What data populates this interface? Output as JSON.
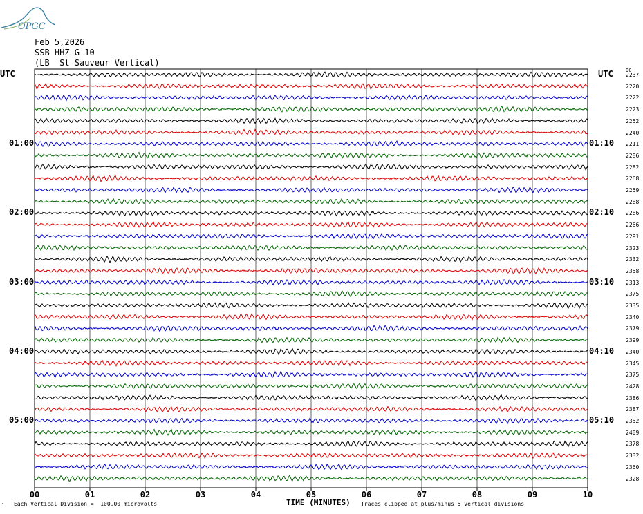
{
  "header": {
    "logo_text": "OPGC",
    "date": "Feb 5,2026",
    "station": "SSB HHZ G 10",
    "location": "(LB  St Sauveur Vertical)"
  },
  "utc_label_left": "UTC",
  "utc_label_right": "UTC",
  "dc_label": "DC",
  "footer": {
    "mark": "J",
    "scale_note": "Each Vertical Division =  100.00 microvolts",
    "clip_note": "Traces clipped at plus/minus 5 vertical divisions"
  },
  "colors": {
    "trace_cycle": [
      "#000000",
      "#dd0000",
      "#0000cc",
      "#006600"
    ],
    "grid": "#000000",
    "logo": "#3a7fa0"
  },
  "chart_data": {
    "type": "line",
    "xlabel": "TIME (MINUTES)",
    "x_ticks": [
      "00",
      "01",
      "02",
      "03",
      "04",
      "05",
      "06",
      "07",
      "08",
      "09",
      "10"
    ],
    "xlim": [
      0,
      10
    ],
    "hour_labels_left": [
      {
        "row": 6,
        "label": "01:00"
      },
      {
        "row": 12,
        "label": "02:00"
      },
      {
        "row": 18,
        "label": "03:00"
      },
      {
        "row": 24,
        "label": "04:00"
      },
      {
        "row": 30,
        "label": "05:00"
      }
    ],
    "hour_labels_right": [
      {
        "row": 6,
        "label": "01:10"
      },
      {
        "row": 12,
        "label": "02:10"
      },
      {
        "row": 18,
        "label": "03:10"
      },
      {
        "row": 24,
        "label": "04:10"
      },
      {
        "row": 30,
        "label": "05:10"
      }
    ],
    "dc_offsets": [
      2237,
      2220,
      2222,
      2223,
      2252,
      2240,
      2211,
      2286,
      2282,
      2268,
      2259,
      2288,
      2286,
      2266,
      2291,
      2323,
      2332,
      2358,
      2313,
      2375,
      2335,
      2340,
      2379,
      2399,
      2340,
      2345,
      2375,
      2428,
      2386,
      2387,
      2352,
      2409,
      2378,
      2332,
      2360,
      2328
    ],
    "trace_count": 36,
    "minutes_per_trace": 10
  }
}
